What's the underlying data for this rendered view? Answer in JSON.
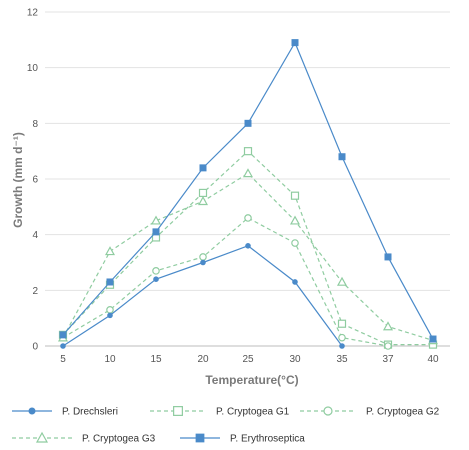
{
  "chart_data": {
    "type": "line",
    "xlabel": "Temperature(°C)",
    "ylabel": "Growth (mm d⁻¹)",
    "x": [
      5,
      10,
      15,
      20,
      25,
      30,
      35,
      37,
      40
    ],
    "ylim": [
      0,
      12
    ],
    "yticks": [
      0,
      2,
      4,
      6,
      8,
      10,
      12
    ],
    "grid": "horizontal",
    "legend_position": "bottom",
    "series": [
      {
        "name": "P. Drechsleri",
        "color": "#4a8ac9",
        "line": "solid",
        "marker": "filled-circle",
        "values": [
          0.0,
          1.1,
          2.4,
          3.0,
          3.6,
          2.3,
          0.0,
          null,
          null
        ]
      },
      {
        "name": "P. Cryptogea G1",
        "color": "#8fcca0",
        "line": "dashed",
        "marker": "open-square",
        "values": [
          0.4,
          2.2,
          3.9,
          5.5,
          7.0,
          5.4,
          0.8,
          0.05,
          0.05
        ]
      },
      {
        "name": "P. Cryptogea G2",
        "color": "#8fcca0",
        "line": "dashed",
        "marker": "open-circle",
        "values": [
          0.3,
          1.3,
          2.7,
          3.2,
          4.6,
          3.7,
          0.3,
          0.0,
          null
        ]
      },
      {
        "name": "P. Cryptogea G3",
        "color": "#8fcca0",
        "line": "dashed",
        "marker": "open-triangle",
        "values": [
          0.3,
          3.4,
          4.5,
          5.2,
          6.2,
          4.5,
          2.3,
          0.7,
          0.2
        ]
      },
      {
        "name": "P. Erythroseptica",
        "color": "#4a8ac9",
        "line": "solid",
        "marker": "filled-square",
        "values": [
          0.4,
          2.3,
          4.1,
          6.4,
          8.0,
          10.9,
          6.8,
          3.2,
          0.25
        ]
      }
    ]
  }
}
